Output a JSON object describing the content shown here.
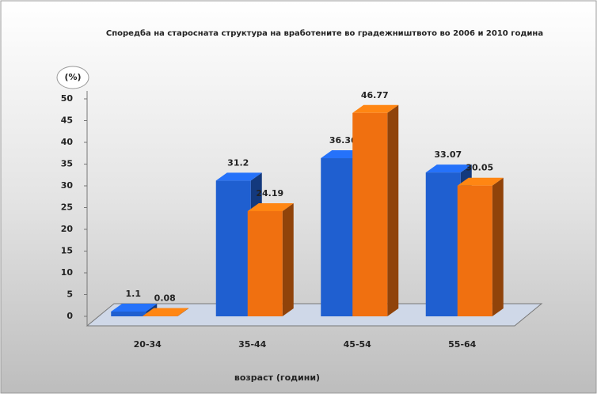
{
  "chart_data": {
    "type": "bar3d",
    "title": "Споредба на старосната структура на вработените во градежништвото во 2006 и 2010 година",
    "y_label": "(%)",
    "x_label": "возраст (години)",
    "categories": [
      "20-34",
      "35-44",
      "45-54",
      "55-64"
    ],
    "series": [
      {
        "color": "#1f5fd0",
        "values": [
          1.1,
          31.2,
          36.36,
          33.07
        ]
      },
      {
        "color": "#f07010",
        "values": [
          0.08,
          24.19,
          46.77,
          30.05
        ]
      }
    ],
    "ylim": [
      0,
      50
    ],
    "yticks": [
      0,
      5,
      10,
      15,
      20,
      25,
      30,
      35,
      40,
      45,
      50
    ]
  }
}
